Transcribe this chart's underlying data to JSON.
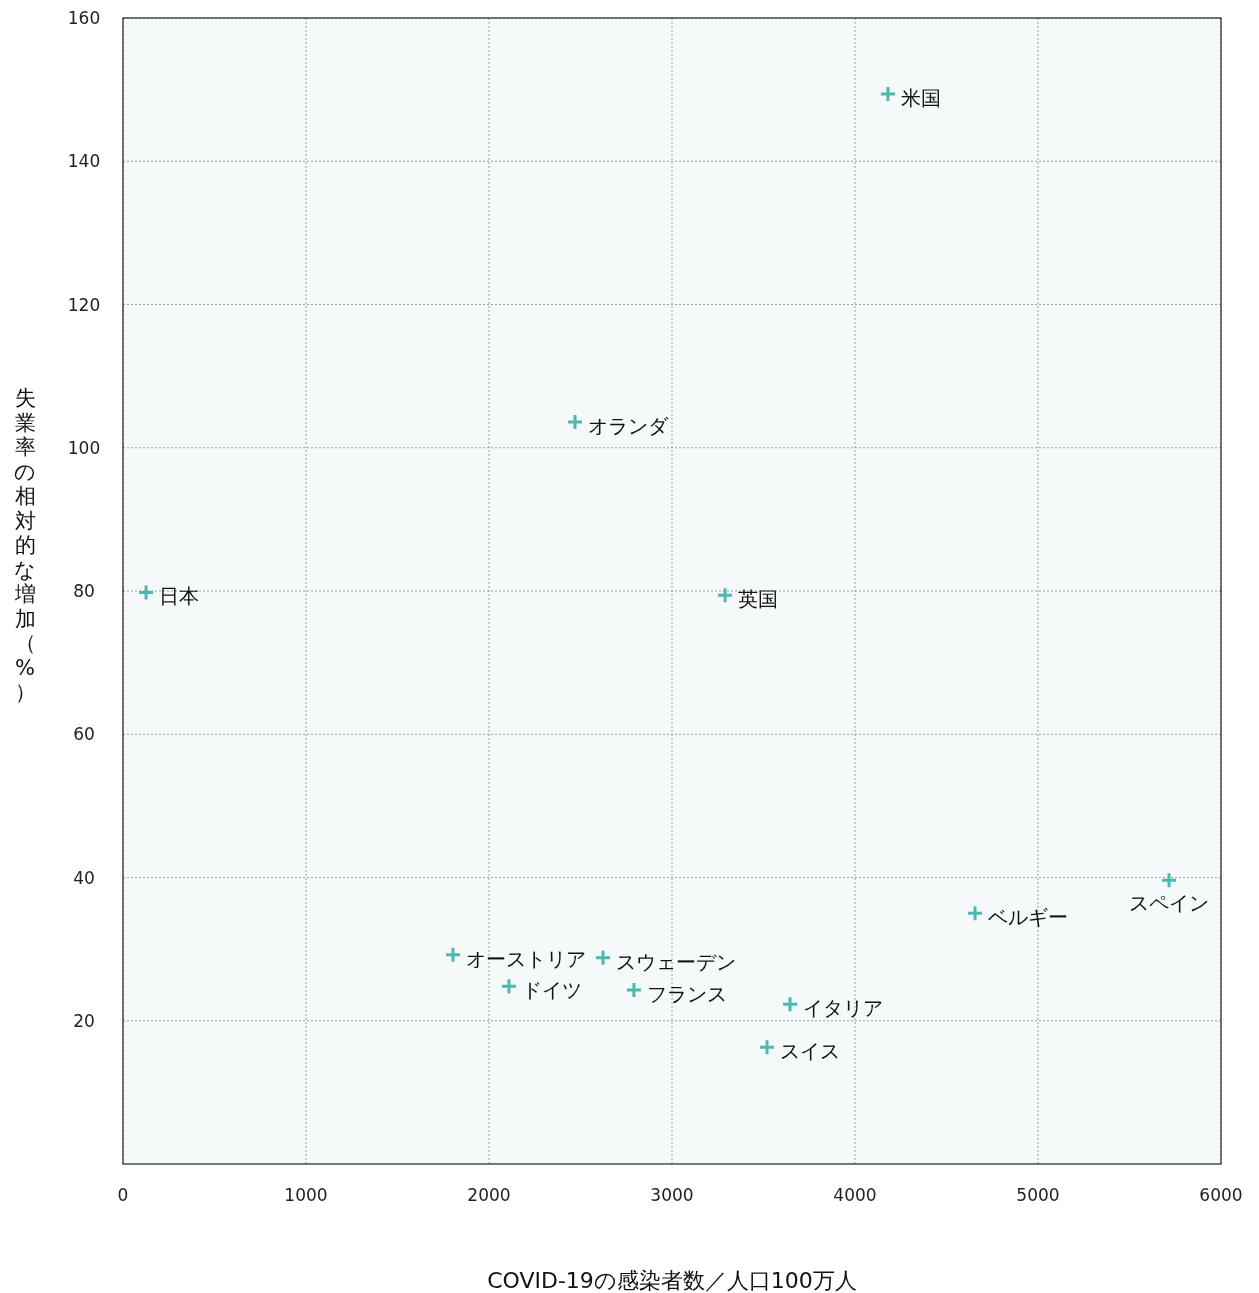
{
  "chart_data": {
    "type": "scatter",
    "xlabel": "COVID-19の感染者数／人口100万人",
    "ylabel": "失業率の相対的な増加（%）",
    "xlim": [
      0,
      6000
    ],
    "ylim": [
      0,
      160
    ],
    "xticks": [
      0,
      1000,
      2000,
      3000,
      4000,
      5000,
      6000
    ],
    "yticks": [
      20,
      40,
      60,
      80,
      100,
      120,
      140,
      160
    ],
    "grid": true,
    "marker": "cross",
    "series": [
      {
        "color": "#4db8b0",
        "x": [
          4180,
          2470,
          126,
          3290,
          5716,
          4656,
          1803,
          2623,
          2109,
          2792,
          3645,
          3519
        ],
        "values": [
          149.4,
          103.6,
          79.8,
          79.4,
          39.6,
          35.0,
          29.2,
          28.8,
          24.8,
          24.3,
          22.3,
          16.3
        ]
      }
    ],
    "annotations": [
      {
        "text": "米国",
        "x": 4180,
        "y": 149.4
      },
      {
        "text": "オランダ",
        "x": 2470,
        "y": 103.6
      },
      {
        "text": "日本",
        "x": 126,
        "y": 79.8
      },
      {
        "text": "英国",
        "x": 3290,
        "y": 79.4
      },
      {
        "text": "スペイン",
        "x": 5716,
        "y": 39.6
      },
      {
        "text": "ベルギー",
        "x": 4656,
        "y": 35.0
      },
      {
        "text": "オーストリア",
        "x": 1803,
        "y": 29.2
      },
      {
        "text": "スウェーデン",
        "x": 2623,
        "y": 28.8
      },
      {
        "text": "ドイツ",
        "x": 2109,
        "y": 24.8
      },
      {
        "text": "フランス",
        "x": 2792,
        "y": 24.3
      },
      {
        "text": "イタリア",
        "x": 3645,
        "y": 22.3
      },
      {
        "text": "スイス",
        "x": 3519,
        "y": 16.3
      }
    ]
  }
}
